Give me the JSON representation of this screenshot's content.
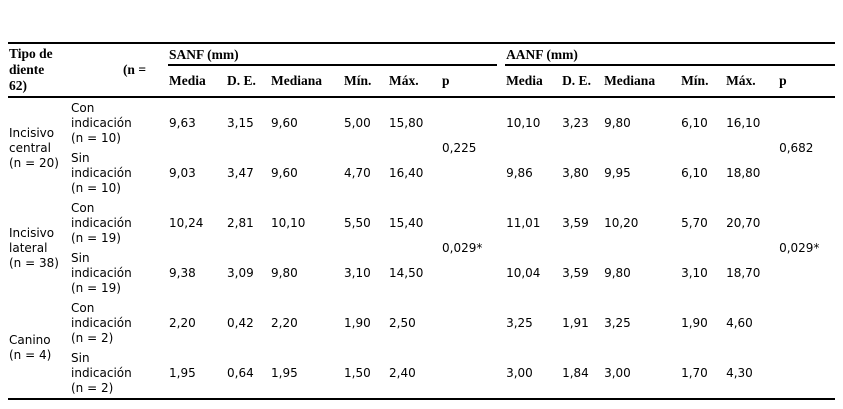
{
  "table": {
    "corner": {
      "tooth_type": "Tipo de diente 62)",
      "n": "(n ="
    },
    "group_headers": [
      "SANF (mm)",
      "AANF (mm)"
    ],
    "sub_columns": [
      "Media",
      "D. E.",
      "Mediana",
      "Mín.",
      "Máx.",
      "p"
    ],
    "groups": [
      {
        "tooth": "Incisivo central (n = 20)",
        "rows": [
          {
            "indication": "Con indicación (n = 10)",
            "sanf": [
              "9,63",
              "3,15",
              "9,60",
              "5,00",
              "15,80"
            ],
            "aanf": [
              "10,10",
              "3,23",
              "9,80",
              "6,10",
              "16,10"
            ]
          },
          {
            "indication": "Sin indicación (n = 10)",
            "sanf": [
              "9,03",
              "3,47",
              "9,60",
              "4,70",
              "16,40"
            ],
            "aanf": [
              "9,86",
              "3,80",
              "9,95",
              "6,10",
              "18,80"
            ]
          }
        ],
        "p_sanf": "0,225",
        "p_aanf": "0,682"
      },
      {
        "tooth": "Incisivo lateral (n = 38)",
        "rows": [
          {
            "indication": "Con indicación (n = 19)",
            "sanf": [
              "10,24",
              "2,81",
              "10,10",
              "5,50",
              "15,40"
            ],
            "aanf": [
              "11,01",
              "3,59",
              "10,20",
              "5,70",
              "20,70"
            ]
          },
          {
            "indication": "Sin indicación (n = 19)",
            "sanf": [
              "9,38",
              "3,09",
              "9,80",
              "3,10",
              "14,50"
            ],
            "aanf": [
              "10,04",
              "3,59",
              "9,80",
              "3,10",
              "18,70"
            ]
          }
        ],
        "p_sanf": "0,029*",
        "p_aanf": "0,029*"
      },
      {
        "tooth": "Canino (n = 4)",
        "rows": [
          {
            "indication": "Con indicación (n = 2)",
            "sanf": [
              "2,20",
              "0,42",
              "2,20",
              "1,90",
              "2,50"
            ],
            "aanf": [
              "3,25",
              "1,91",
              "3,25",
              "1,90",
              "4,60"
            ]
          },
          {
            "indication": "Sin indicación (n = 2)",
            "sanf": [
              "1,95",
              "0,64",
              "1,95",
              "1,50",
              "2,40"
            ],
            "aanf": [
              "3,00",
              "1,84",
              "3,00",
              "1,70",
              "4,30"
            ]
          }
        ],
        "p_sanf": "",
        "p_aanf": ""
      }
    ]
  }
}
